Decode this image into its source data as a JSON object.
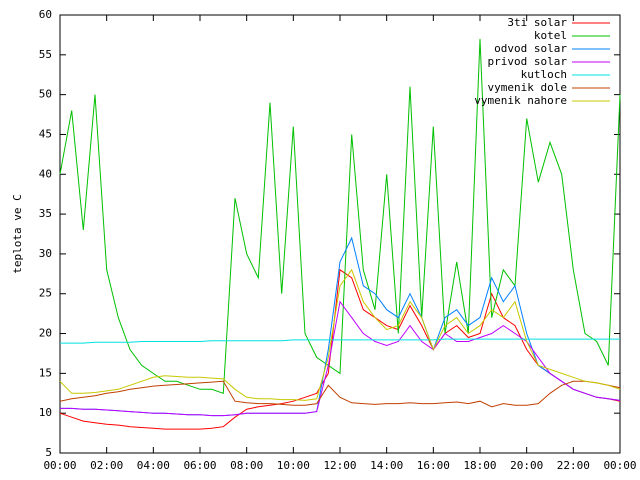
{
  "chart_data": {
    "type": "line",
    "y_label": "teplota ve C",
    "x": [
      0,
      0.5,
      1,
      1.5,
      2,
      2.5,
      3,
      3.5,
      4,
      4.5,
      5,
      5.5,
      6,
      6.5,
      7,
      7.5,
      8,
      8.5,
      9,
      9.5,
      10,
      10.5,
      11,
      11.5,
      12,
      12.5,
      13,
      13.5,
      14,
      14.5,
      15,
      15.5,
      16,
      16.5,
      17,
      17.5,
      18,
      18.5,
      19,
      19.5,
      20,
      20.5,
      21,
      21.5,
      22,
      22.5,
      23,
      23.5,
      24
    ],
    "xlim": [
      0,
      24
    ],
    "xticks": [
      {
        "value": 0,
        "label": "00:00"
      },
      {
        "value": 2,
        "label": "02:00"
      },
      {
        "value": 4,
        "label": "04:00"
      },
      {
        "value": 6,
        "label": "06:00"
      },
      {
        "value": 8,
        "label": "08:00"
      },
      {
        "value": 10,
        "label": "10:00"
      },
      {
        "value": 12,
        "label": "12:00"
      },
      {
        "value": 14,
        "label": "14:00"
      },
      {
        "value": 16,
        "label": "16:00"
      },
      {
        "value": 18,
        "label": "18:00"
      },
      {
        "value": 20,
        "label": "20:00"
      },
      {
        "value": 22,
        "label": "22:00"
      },
      {
        "value": 24,
        "label": "00:00"
      }
    ],
    "ylim": [
      5,
      60
    ],
    "yticks": [
      5,
      10,
      15,
      20,
      25,
      30,
      35,
      40,
      45,
      50,
      55,
      60
    ],
    "legend": "top-right",
    "series": [
      {
        "name": "3ti solar",
        "color": "#ff0000",
        "values": [
          10,
          9.5,
          9,
          8.8,
          8.6,
          8.5,
          8.3,
          8.2,
          8.1,
          8,
          8,
          8,
          8,
          8.1,
          8.3,
          9.5,
          10.5,
          10.8,
          11,
          11.2,
          11.5,
          12,
          12.5,
          15,
          28,
          27,
          23,
          22,
          21,
          20.5,
          23.5,
          21,
          18,
          20,
          21,
          19.5,
          20,
          25,
          22,
          21,
          18,
          16,
          15,
          14,
          13,
          12.5,
          12,
          11.8,
          11.5
        ]
      },
      {
        "name": "kotel",
        "color": "#00c000",
        "values": [
          40,
          48,
          33,
          50,
          28,
          22,
          18,
          16,
          15,
          14,
          14,
          13.5,
          13,
          13,
          12.5,
          37,
          30,
          27,
          49,
          25,
          46,
          20,
          17,
          16,
          15,
          45,
          28,
          23,
          40,
          20,
          51,
          22,
          46,
          20,
          29,
          20,
          57,
          22,
          28,
          26,
          47,
          39,
          44,
          40,
          28,
          20,
          19,
          16,
          50
        ]
      },
      {
        "name": "odvod solar",
        "color": "#0080ff",
        "values": [
          10.6,
          10.6,
          10.5,
          10.5,
          10.4,
          10.3,
          10.2,
          10.1,
          10,
          10,
          9.9,
          9.8,
          9.8,
          9.7,
          9.7,
          9.8,
          10,
          10,
          10,
          10,
          10,
          10,
          10.2,
          18,
          29,
          32,
          26,
          25,
          23,
          22,
          25,
          22,
          18,
          22,
          23,
          21,
          22,
          27,
          24,
          26,
          20,
          16,
          15,
          14,
          13,
          12.5,
          12,
          11.8,
          11.6
        ]
      },
      {
        "name": "privod solar",
        "color": "#c000ff",
        "values": [
          10.6,
          10.6,
          10.5,
          10.5,
          10.4,
          10.3,
          10.2,
          10.1,
          10,
          10,
          9.9,
          9.8,
          9.8,
          9.7,
          9.7,
          9.8,
          10,
          10,
          10,
          10,
          10,
          10,
          10.2,
          16,
          24,
          22,
          20,
          19,
          18.5,
          19,
          21,
          19,
          18,
          20,
          19,
          19,
          19.5,
          20,
          21,
          20,
          19,
          17,
          15,
          14,
          13,
          12.5,
          12,
          11.8,
          11.6
        ]
      },
      {
        "name": "kutloch",
        "color": "#00e0e0",
        "values": [
          18.8,
          18.8,
          18.8,
          18.9,
          18.9,
          18.9,
          18.9,
          19,
          19,
          19,
          19,
          19,
          19,
          19.1,
          19.1,
          19.1,
          19.1,
          19.1,
          19.1,
          19.1,
          19.2,
          19.2,
          19.2,
          19.2,
          19.2,
          19.2,
          19.2,
          19.2,
          19.2,
          19.2,
          19.2,
          19.2,
          19.2,
          19.3,
          19.3,
          19.3,
          19.3,
          19.3,
          19.3,
          19.3,
          19.3,
          19.3,
          19.3,
          19.3,
          19.3,
          19.3,
          19.3,
          19.3,
          19.3
        ]
      },
      {
        "name": "vymenik dole",
        "color": "#c04000",
        "values": [
          11.5,
          11.8,
          12,
          12.2,
          12.5,
          12.7,
          13,
          13.2,
          13.4,
          13.5,
          13.6,
          13.7,
          13.8,
          13.9,
          14,
          11.5,
          11.3,
          11.2,
          11.2,
          11.1,
          11,
          11,
          11.2,
          13.5,
          12,
          11.3,
          11.2,
          11.1,
          11.2,
          11.2,
          11.3,
          11.2,
          11.2,
          11.3,
          11.4,
          11.2,
          11.5,
          10.8,
          11.2,
          11,
          11,
          11.2,
          12.5,
          13.5,
          14,
          14,
          13.8,
          13.5,
          13.2
        ]
      },
      {
        "name": "vymenik nahore",
        "color": "#c8c800",
        "values": [
          14,
          12.5,
          12.5,
          12.6,
          12.8,
          13,
          13.5,
          14,
          14.5,
          14.7,
          14.6,
          14.5,
          14.5,
          14.4,
          14.3,
          13,
          12,
          11.8,
          11.8,
          11.7,
          11.7,
          11.6,
          11.8,
          17,
          26,
          28,
          24,
          22,
          20.5,
          21,
          24,
          22,
          18,
          21,
          22,
          20,
          21,
          23,
          22,
          24,
          19,
          16,
          15.5,
          15,
          14.5,
          14,
          13.8,
          13.5,
          13
        ]
      }
    ]
  }
}
